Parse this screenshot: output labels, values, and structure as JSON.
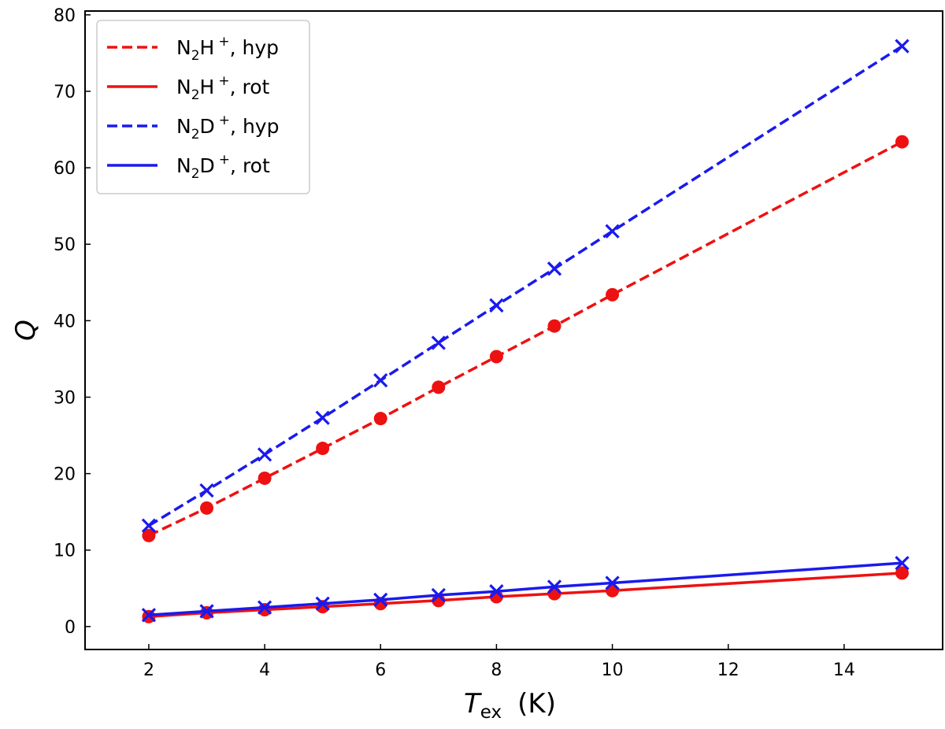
{
  "chart_data": {
    "type": "line",
    "xlabel": "ex",
    "xlabel_main": "T",
    "xlabel_unit": "(K)",
    "ylabel": "Q",
    "xlim": [
      0.9,
      15.7
    ],
    "ylim": [
      -3,
      80.5
    ],
    "xticks": [
      2,
      4,
      6,
      8,
      10,
      12,
      14
    ],
    "yticks": [
      0,
      10,
      20,
      30,
      40,
      50,
      60,
      70,
      80
    ],
    "grid": false,
    "legend_position": "top-left",
    "x": [
      2,
      3,
      4,
      5,
      6,
      7,
      8,
      9,
      10,
      15
    ],
    "series": [
      {
        "id": "n2hp-hyp",
        "name_base": "N",
        "name_sub": "2",
        "name_mid": "H",
        "name_sup": "+",
        "name_tail": ", hyp",
        "color": "#ee1111",
        "linestyle": "dashed",
        "marker": "circle",
        "values": [
          11.9,
          15.5,
          19.4,
          23.3,
          27.2,
          31.3,
          35.3,
          39.3,
          43.4,
          63.4
        ]
      },
      {
        "id": "n2hp-rot",
        "name_base": "N",
        "name_sub": "2",
        "name_mid": "H",
        "name_sup": "+",
        "name_tail": ", rot",
        "color": "#ee1111",
        "linestyle": "solid",
        "marker": "circle",
        "values": [
          1.3,
          1.8,
          2.2,
          2.6,
          3.0,
          3.4,
          3.9,
          4.3,
          4.7,
          7.0
        ]
      },
      {
        "id": "n2dp-hyp",
        "name_base": "N",
        "name_sub": "2",
        "name_mid": "D",
        "name_sup": "+",
        "name_tail": ", hyp",
        "color": "#1a1aee",
        "linestyle": "dashed",
        "marker": "x",
        "values": [
          13.2,
          17.8,
          22.5,
          27.3,
          32.2,
          37.1,
          42.0,
          46.8,
          51.7,
          75.9
        ]
      },
      {
        "id": "n2dp-rot",
        "name_base": "N",
        "name_sub": "2",
        "name_mid": "D",
        "name_sup": "+",
        "name_tail": ", rot",
        "color": "#1a1aee",
        "linestyle": "solid",
        "marker": "x",
        "values": [
          1.5,
          2.0,
          2.5,
          3.0,
          3.5,
          4.1,
          4.6,
          5.2,
          5.7,
          8.3
        ]
      }
    ]
  }
}
